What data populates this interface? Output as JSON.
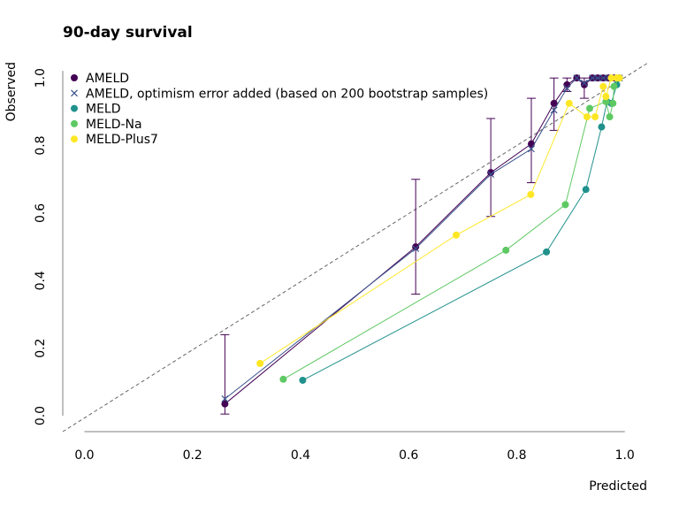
{
  "chart_data": {
    "type": "calibration",
    "title": "90-day survival",
    "x_label": "Predicted",
    "y_label": "Observed",
    "xlim": [
      -0.04,
      1.043
    ],
    "ylim": [
      -0.047,
      1.045
    ],
    "xticks": [
      {
        "value": 0,
        "label": "0.0"
      },
      {
        "value": 0.2,
        "label": "0.2"
      },
      {
        "value": 0.4,
        "label": "0.4"
      },
      {
        "value": 0.6,
        "label": "0.6"
      },
      {
        "value": 0.8,
        "label": "0.8"
      },
      {
        "value": 1,
        "label": "1.0"
      }
    ],
    "yticks": [
      {
        "value": 0,
        "label": "0.0"
      },
      {
        "value": 0.2,
        "label": "0.2"
      },
      {
        "value": 0.4,
        "label": "0.4"
      },
      {
        "value": 0.6,
        "label": "0.6"
      },
      {
        "value": 0.8,
        "label": "0.8"
      },
      {
        "value": 1,
        "label": "1.0"
      }
    ],
    "legend": "upper left",
    "series": [
      {
        "name": "AMELD",
        "color": "#440154",
        "marker": "circle",
        "x": [
          0.26,
          0.613,
          0.752,
          0.827,
          0.869,
          0.893,
          0.911,
          0.925,
          0.94,
          0.95,
          0.96,
          0.97,
          0.98,
          0.99
        ],
        "values": [
          0.035,
          0.5,
          0.72,
          0.805,
          0.925,
          0.98,
          1.0,
          0.98,
          1.0,
          1.0,
          1.0,
          1.0,
          1.0,
          1.0
        ],
        "ci_low": [
          0.005,
          0.36,
          0.59,
          0.69,
          0.845,
          0.96,
          null,
          0.94,
          null,
          null,
          null,
          null,
          null,
          null
        ],
        "ci_high": [
          0.24,
          0.7,
          0.88,
          0.94,
          1.0,
          1.0,
          null,
          1.0,
          null,
          null,
          null,
          null,
          null,
          null
        ]
      },
      {
        "name": "AMELD, optimism error added (based on 200 bootstrap samples)",
        "color": "#3b528b",
        "marker": "x",
        "x": [
          0.26,
          0.613,
          0.752,
          0.827,
          0.869,
          0.893,
          0.911,
          0.925,
          0.94,
          0.95,
          0.96,
          0.97,
          0.98,
          0.99
        ],
        "values": [
          0.05,
          0.495,
          0.715,
          0.79,
          0.905,
          0.97,
          1.0,
          0.985,
          1.0,
          1.0,
          1.0,
          1.0,
          1.0,
          1.0
        ]
      },
      {
        "name": "MELD",
        "color": "#21918c",
        "marker": "circle",
        "x": [
          0.404,
          0.855,
          0.928,
          0.957,
          0.967,
          0.975,
          0.985,
          0.99
        ],
        "values": [
          0.105,
          0.485,
          0.67,
          0.855,
          0.93,
          0.925,
          0.98,
          1.0
        ]
      },
      {
        "name": "MELD-Na",
        "color": "#5ec962",
        "marker": "circle",
        "x": [
          0.368,
          0.78,
          0.89,
          0.935,
          0.965,
          0.972,
          0.978,
          0.98,
          0.99
        ],
        "values": [
          0.108,
          0.49,
          0.625,
          0.91,
          0.93,
          0.885,
          0.925,
          0.975,
          1.0
        ]
      },
      {
        "name": "MELD-Plus7",
        "color": "#fde725",
        "marker": "circle",
        "x": [
          0.325,
          0.688,
          0.826,
          0.897,
          0.93,
          0.945,
          0.96,
          0.965,
          0.975,
          0.985,
          0.99
        ],
        "values": [
          0.155,
          0.535,
          0.655,
          0.925,
          0.885,
          0.885,
          0.975,
          0.945,
          1.0,
          1.0,
          1.0
        ]
      }
    ]
  }
}
